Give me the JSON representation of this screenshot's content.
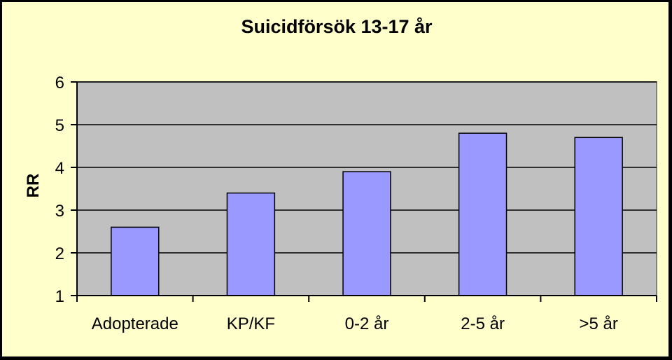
{
  "chart_data": {
    "type": "bar",
    "title": "Suicidförsök 13-17 år",
    "xlabel": "",
    "ylabel": "RR",
    "categories": [
      "Adopterade",
      "KP/KF",
      "0-2 år",
      "2-5 år",
      ">5 år"
    ],
    "values": [
      2.6,
      3.4,
      3.9,
      4.8,
      4.7
    ],
    "ylim": [
      1,
      6
    ],
    "yticks": [
      1,
      2,
      3,
      4,
      5,
      6
    ],
    "grid": true,
    "legend": "none",
    "colors": {
      "bar": "#9999ff",
      "plot_background": "#c0c0c0",
      "chart_background": "#ffffcc",
      "gridline": "#000000"
    }
  }
}
